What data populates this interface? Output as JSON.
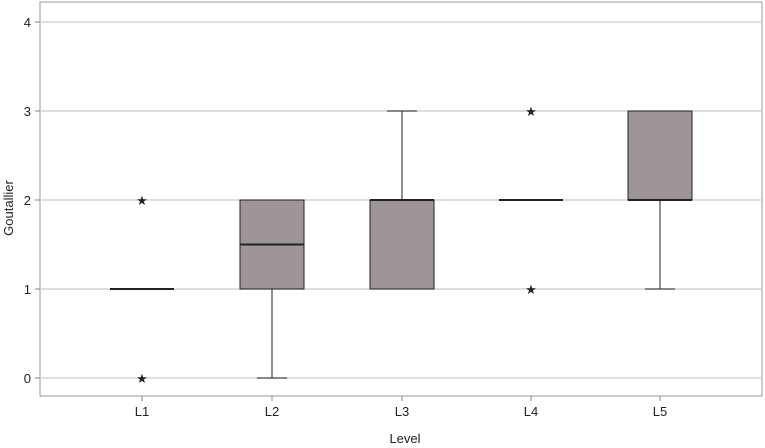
{
  "chart_data": {
    "type": "box",
    "title": "",
    "xlabel": "Level",
    "ylabel": "Goutallier",
    "categories": [
      "L1",
      "L2",
      "L3",
      "L4",
      "L5"
    ],
    "ylim": [
      0,
      4
    ],
    "yticks": [
      0,
      1,
      2,
      3,
      4
    ],
    "grid": "horizontal",
    "boxes": [
      {
        "category": "L1",
        "q1": 1,
        "median": 1,
        "q3": 1,
        "whisker_low": 1,
        "whisker_high": 1,
        "outliers": [
          0,
          2
        ]
      },
      {
        "category": "L2",
        "q1": 1,
        "median": 1.5,
        "q3": 2,
        "whisker_low": 0,
        "whisker_high": 2,
        "outliers": []
      },
      {
        "category": "L3",
        "q1": 1,
        "median": 2,
        "q3": 2,
        "whisker_low": 1,
        "whisker_high": 3,
        "outliers": []
      },
      {
        "category": "L4",
        "q1": 2,
        "median": 2,
        "q3": 2,
        "whisker_low": 2,
        "whisker_high": 2,
        "outliers": [
          1,
          3
        ]
      },
      {
        "category": "L5",
        "q1": 2,
        "median": 2,
        "q3": 3,
        "whisker_low": 1,
        "whisker_high": 3,
        "outliers": []
      }
    ],
    "colors": {
      "box_fill": "#9e9696",
      "line": "#222222",
      "grid": "#d4d4d4",
      "axis": "#888888"
    }
  }
}
